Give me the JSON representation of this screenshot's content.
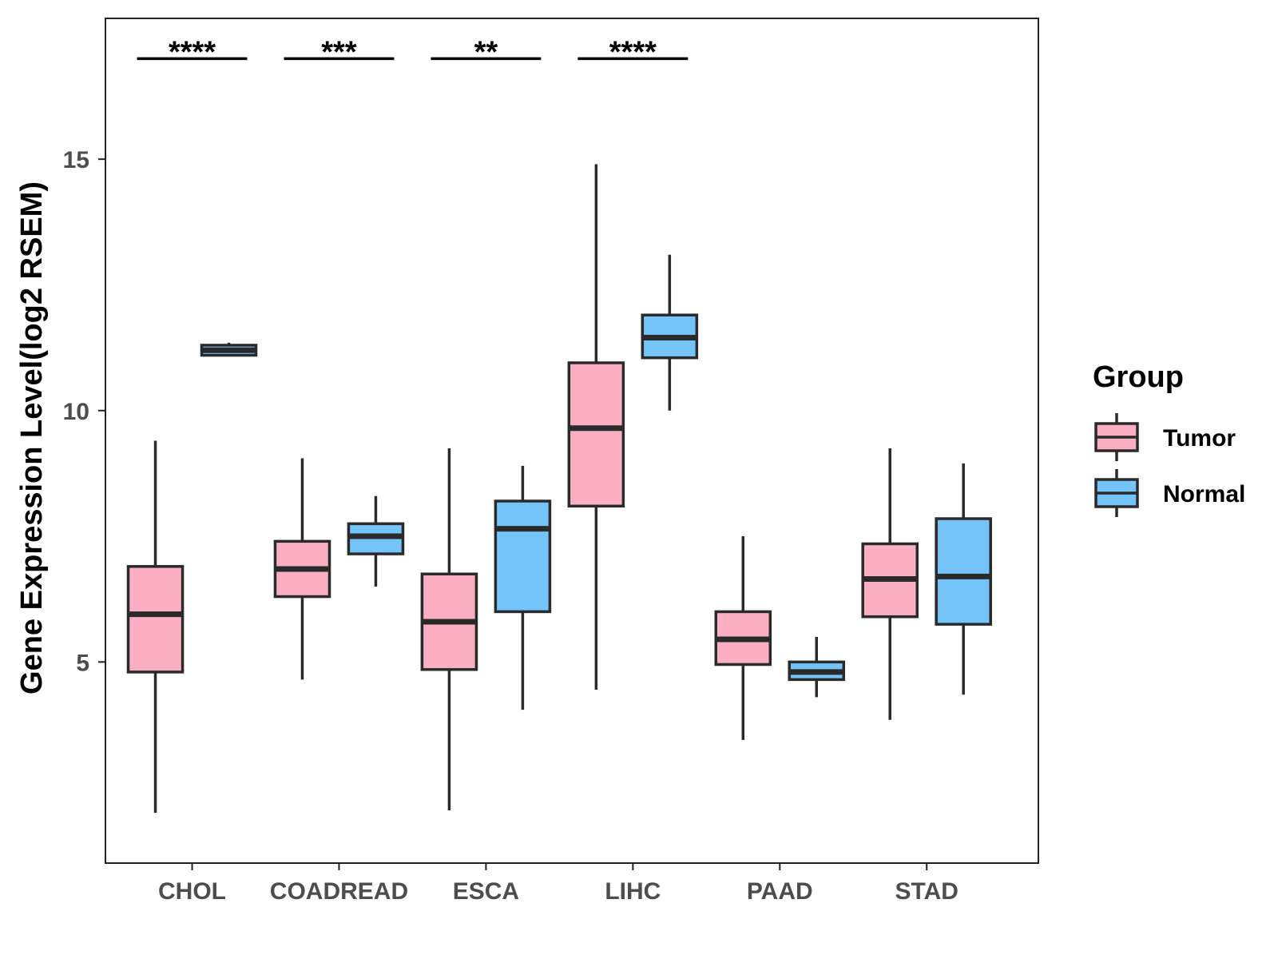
{
  "chart_data": {
    "type": "boxplot",
    "ylabel": "Gene Expression Level(log2 RSEM)",
    "xlabel": "",
    "ylim": [
      1.0,
      17.8
    ],
    "yticks": [
      5,
      10,
      15
    ],
    "yticks_text": [
      "5",
      "10",
      "15"
    ],
    "categories": [
      "CHOL",
      "COADREAD",
      "ESCA",
      "LIHC",
      "PAAD",
      "STAD"
    ],
    "legend": {
      "title": "Group",
      "position": "right",
      "entries": [
        {
          "name": "Tumor",
          "color": "#FBAFC3"
        },
        {
          "name": "Normal",
          "color": "#74C3F9"
        }
      ]
    },
    "series": [
      {
        "name": "Tumor",
        "color": "#FBAFC3",
        "boxes": [
          {
            "min": 2.0,
            "q1": 4.8,
            "median": 5.95,
            "q3": 6.9,
            "max": 9.4
          },
          {
            "min": 4.65,
            "q1": 6.3,
            "median": 6.85,
            "q3": 7.4,
            "max": 9.05
          },
          {
            "min": 2.05,
            "q1": 4.85,
            "median": 5.8,
            "q3": 6.75,
            "max": 9.25
          },
          {
            "min": 4.45,
            "q1": 8.1,
            "median": 9.65,
            "q3": 10.95,
            "max": 14.9
          },
          {
            "min": 3.45,
            "q1": 4.95,
            "median": 5.45,
            "q3": 6.0,
            "max": 7.5
          },
          {
            "min": 3.85,
            "q1": 5.9,
            "median": 6.65,
            "q3": 7.35,
            "max": 9.25
          }
        ]
      },
      {
        "name": "Normal",
        "color": "#74C3F9",
        "boxes": [
          {
            "min": 11.1,
            "q1": 11.1,
            "median": 11.2,
            "q3": 11.3,
            "max": 11.35
          },
          {
            "min": 6.5,
            "q1": 7.15,
            "median": 7.5,
            "q3": 7.75,
            "max": 8.3
          },
          {
            "min": 4.05,
            "q1": 6.0,
            "median": 7.65,
            "q3": 8.2,
            "max": 8.9
          },
          {
            "min": 10.0,
            "q1": 11.05,
            "median": 11.45,
            "q3": 11.9,
            "max": 13.1
          },
          {
            "min": 4.3,
            "q1": 4.65,
            "median": 4.8,
            "q3": 5.0,
            "max": 5.5
          },
          {
            "min": 4.35,
            "q1": 5.75,
            "median": 6.7,
            "q3": 7.85,
            "max": 8.95
          }
        ]
      }
    ],
    "annotations": [
      {
        "category": "CHOL",
        "text": "****",
        "y": 17.0
      },
      {
        "category": "COADREAD",
        "text": "***",
        "y": 17.0
      },
      {
        "category": "ESCA",
        "text": "**",
        "y": 17.0
      },
      {
        "category": "LIHC",
        "text": "****",
        "y": 17.0
      }
    ]
  }
}
